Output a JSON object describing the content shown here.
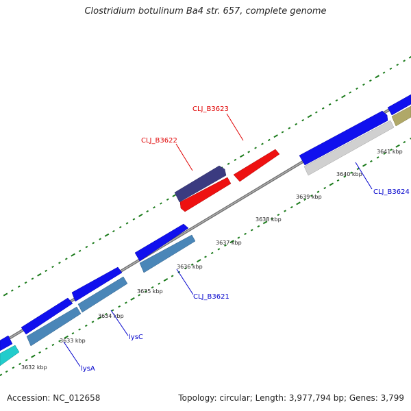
{
  "title": "Clostridium botulinum Ba4 str. 657, complete genome",
  "accession": "Accession: NC_012658",
  "summary": "Topology: circular; Length: 3,977,794 bp; Genes: 3,799",
  "colors": {
    "backbone": "#8c8c8c",
    "tick": "#1a7a1a",
    "label_red": "#e00000",
    "label_blue": "#0000cc",
    "forward_cds": "#0000ee",
    "forward_cds_alt": "#3a3a8a",
    "red_cds": "#ee0000",
    "steel_cds": "#4682b4",
    "gray_cds": "#cfcfcf",
    "cyan_cds": "#20c8c8",
    "olive_cds": "#a8a060"
  },
  "kbp_labels": [
    "3632 kbp",
    "3633 kbp",
    "3634 kbp",
    "3635 kbp",
    "3636 kbp",
    "3637 kbp",
    "3638 kbp",
    "3639 kbp",
    "3640 kbp",
    "3641 kbp"
  ],
  "gene_labels": [
    {
      "name": "CLJ_B3623",
      "color": "red"
    },
    {
      "name": "CLJ_B3622",
      "color": "red"
    },
    {
      "name": "CLJ_B3624",
      "color": "blue"
    },
    {
      "name": "CLJ_B3621",
      "color": "blue"
    },
    {
      "name": "lysC",
      "color": "blue"
    },
    {
      "name": "lysA",
      "color": "blue"
    }
  ]
}
